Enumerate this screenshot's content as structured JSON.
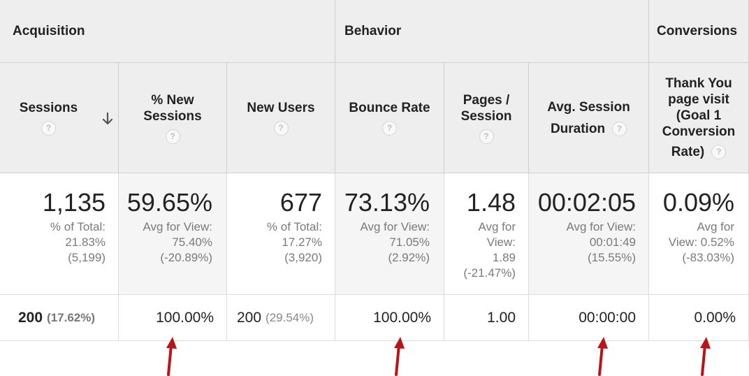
{
  "groups": {
    "acquisition": "Acquisition",
    "behavior": "Behavior",
    "conversions": "Conversions"
  },
  "columns": {
    "sessions": "Sessions",
    "new_sessions_1": "% New",
    "new_sessions_2": "Sessions",
    "new_users": "New Users",
    "bounce_rate": "Bounce Rate",
    "pages_1": "Pages /",
    "pages_2": "Session",
    "duration_1": "Avg. Session",
    "duration_2": "Duration",
    "goal_1": "Thank You",
    "goal_2": "page visit",
    "goal_3": "(Goal 1",
    "goal_4": "Conversion",
    "goal_5": "Rate)"
  },
  "help_icon": "?",
  "totals": {
    "sessions": {
      "value": "1,135",
      "l1": "% of Total:",
      "l2": "21.83%",
      "l3": "(5,199)"
    },
    "new_sessions": {
      "value": "59.65%",
      "l1": "Avg for View:",
      "l2": "75.40%",
      "l3": "(-20.89%)"
    },
    "new_users": {
      "value": "677",
      "l1": "% of Total:",
      "l2": "17.27%",
      "l3": "(3,920)"
    },
    "bounce_rate": {
      "value": "73.13%",
      "l1": "Avg for View:",
      "l2": "71.05%",
      "l3": "(2.92%)"
    },
    "pages": {
      "value": "1.48",
      "l1": "Avg for",
      "l2": "View:",
      "l3": "1.89",
      "l4": "(-21.47%)"
    },
    "duration": {
      "value": "00:02:05",
      "l1": "Avg for View:",
      "l2": "00:01:49",
      "l3": "(15.55%)"
    },
    "goal": {
      "value": "0.09%",
      "l1": "Avg for",
      "l2": "View: 0.52%",
      "l3": "(-83.03%)"
    }
  },
  "row": {
    "sessions": "200",
    "sessions_pct": "(17.62%)",
    "new_sessions": "100.00%",
    "new_users": "200",
    "new_users_pct": "(29.54%)",
    "bounce_rate": "100.00%",
    "pages": "1.00",
    "duration": "00:00:00",
    "goal": "0.00%"
  },
  "colors": {
    "header_bg": "#eeeeee",
    "alt_bg": "#f5f5f5",
    "arrow": "#b8141a"
  }
}
